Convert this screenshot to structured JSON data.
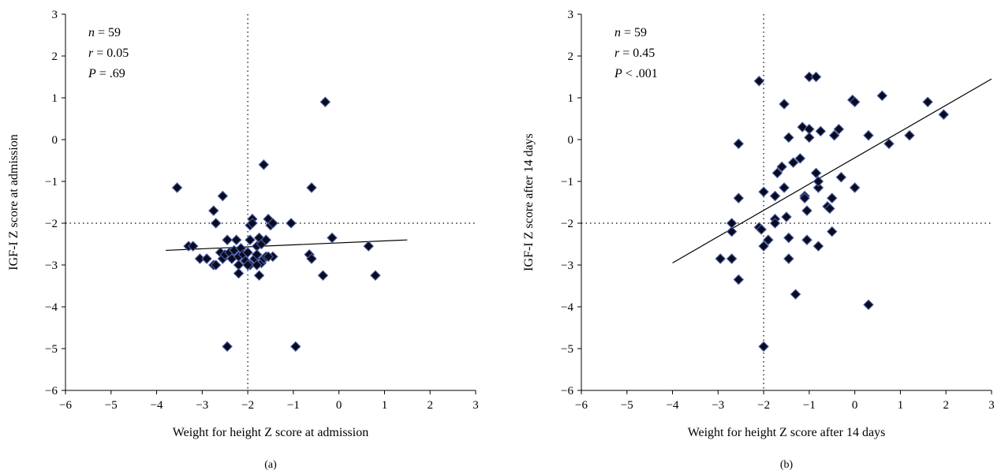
{
  "chart_data": [
    {
      "type": "scatter",
      "panel_label": "(a)",
      "xlabel": "Weight for height Z score at admission",
      "ylabel": "IGF-I Z score at admission",
      "xlim": [
        -6,
        3
      ],
      "ylim": [
        -6,
        3
      ],
      "x_ticks": [
        -6,
        -5,
        -4,
        -3,
        -2,
        -1,
        0,
        1,
        2,
        3
      ],
      "y_ticks": [
        -6,
        -5,
        -4,
        -3,
        -2,
        -1,
        0,
        1,
        2,
        3
      ],
      "x_tick_labels": [
        "−6",
        "−5",
        "−4",
        "−3",
        "−2",
        "−1",
        "0",
        "1",
        "2",
        "3"
      ],
      "y_tick_labels": [
        "−6",
        "−5",
        "−4",
        "−3",
        "−2",
        "−1",
        "0",
        "1",
        "2",
        "3"
      ],
      "stats": [
        {
          "var": "n",
          "rest": " = 59"
        },
        {
          "var": "r",
          "rest": " = 0.05"
        },
        {
          "var": "P",
          "rest": " = .69"
        }
      ],
      "reference_lines": {
        "x": -2,
        "y": -2
      },
      "fit_line": {
        "x": [
          -3.8,
          1.5
        ],
        "y": [
          -2.65,
          -2.4
        ]
      },
      "points": [
        [
          -3.55,
          -1.15
        ],
        [
          -3.3,
          -2.55
        ],
        [
          -3.2,
          -2.55
        ],
        [
          -3.05,
          -2.85
        ],
        [
          -2.9,
          -2.85
        ],
        [
          -2.75,
          -1.7
        ],
        [
          -2.7,
          -2.0
        ],
        [
          -2.75,
          -3.0
        ],
        [
          -2.7,
          -3.0
        ],
        [
          -2.6,
          -2.7
        ],
        [
          -2.55,
          -1.35
        ],
        [
          -2.55,
          -2.85
        ],
        [
          -2.5,
          -2.75
        ],
        [
          -2.45,
          -2.4
        ],
        [
          -2.4,
          -2.7
        ],
        [
          -2.35,
          -2.85
        ],
        [
          -2.3,
          -2.65
        ],
        [
          -2.25,
          -2.4
        ],
        [
          -2.2,
          -2.8
        ],
        [
          -2.2,
          -3.0
        ],
        [
          -2.2,
          -3.2
        ],
        [
          -2.15,
          -2.6
        ],
        [
          -2.1,
          -2.75
        ],
        [
          -2.05,
          -2.9
        ],
        [
          -2.0,
          -2.7
        ],
        [
          -1.95,
          -2.4
        ],
        [
          -1.95,
          -2.05
        ],
        [
          -1.9,
          -1.9
        ],
        [
          -1.95,
          -3.0
        ],
        [
          -1.85,
          -2.85
        ],
        [
          -1.8,
          -2.55
        ],
        [
          -1.8,
          -2.75
        ],
        [
          -1.75,
          -2.35
        ],
        [
          -1.7,
          -2.5
        ],
        [
          -1.7,
          -2.95
        ],
        [
          -1.8,
          -3.0
        ],
        [
          -1.75,
          -3.25
        ],
        [
          -1.65,
          -2.85
        ],
        [
          -1.6,
          -2.4
        ],
        [
          -1.6,
          -2.8
        ],
        [
          -1.55,
          -1.9
        ],
        [
          -1.5,
          -2.05
        ],
        [
          -1.45,
          -2.0
        ],
        [
          -1.45,
          -2.8
        ],
        [
          -1.65,
          -0.6
        ],
        [
          -1.05,
          -2.0
        ],
        [
          -0.65,
          -2.75
        ],
        [
          -0.6,
          -2.85
        ],
        [
          -0.6,
          -1.15
        ],
        [
          -0.35,
          -3.25
        ],
        [
          -0.3,
          0.9
        ],
        [
          -0.15,
          -2.35
        ],
        [
          0.65,
          -2.55
        ],
        [
          0.8,
          -3.25
        ],
        [
          -2.45,
          -4.95
        ],
        [
          -0.95,
          -4.95
        ],
        [
          -1.55,
          -2.8
        ],
        [
          -2.0,
          -3.0
        ],
        [
          -1.9,
          -2.0
        ]
      ]
    },
    {
      "type": "scatter",
      "panel_label": "(b)",
      "xlabel": "Weight for height Z score after 14 days",
      "ylabel": "IGF-I Z score after 14 days",
      "xlim": [
        -6,
        3
      ],
      "ylim": [
        -6,
        3
      ],
      "x_ticks": [
        -6,
        -5,
        -4,
        -3,
        -2,
        -1,
        0,
        1,
        2,
        3
      ],
      "y_ticks": [
        -6,
        -5,
        -4,
        -3,
        -2,
        -1,
        0,
        1,
        2,
        3
      ],
      "x_tick_labels": [
        "−6",
        "−5",
        "−4",
        "−3",
        "−2",
        "−1",
        "0",
        "1",
        "2",
        "3"
      ],
      "y_tick_labels": [
        "−6",
        "−5",
        "−4",
        "−3",
        "−2",
        "−1",
        "0",
        "1",
        "2",
        "3"
      ],
      "stats": [
        {
          "var": "n",
          "rest": " = 59"
        },
        {
          "var": "r",
          "rest": " = 0.45"
        },
        {
          "var": "P",
          "rest": " < .001"
        }
      ],
      "reference_lines": {
        "x": -2,
        "y": -2
      },
      "fit_line": {
        "x": [
          -4,
          3
        ],
        "y": [
          -2.95,
          1.45
        ]
      },
      "points": [
        [
          -2.95,
          -2.85
        ],
        [
          -2.7,
          -2.85
        ],
        [
          -2.7,
          -2.2
        ],
        [
          -2.7,
          -2.0
        ],
        [
          -2.55,
          -0.1
        ],
        [
          -2.55,
          -1.4
        ],
        [
          -2.55,
          -3.35
        ],
        [
          -2.1,
          1.4
        ],
        [
          -2.1,
          -2.1
        ],
        [
          -2.05,
          -2.15
        ],
        [
          -2.0,
          -1.25
        ],
        [
          -2.0,
          -2.55
        ],
        [
          -2.0,
          -4.95
        ],
        [
          -1.9,
          -2.4
        ],
        [
          -1.75,
          -1.9
        ],
        [
          -1.75,
          -2.0
        ],
        [
          -1.75,
          -1.35
        ],
        [
          -1.7,
          -0.8
        ],
        [
          -1.6,
          -0.65
        ],
        [
          -1.55,
          -1.15
        ],
        [
          -1.55,
          0.85
        ],
        [
          -1.5,
          -1.85
        ],
        [
          -1.45,
          -2.35
        ],
        [
          -1.45,
          -2.85
        ],
        [
          -1.45,
          0.05
        ],
        [
          -1.35,
          -0.55
        ],
        [
          -1.3,
          -3.7
        ],
        [
          -1.2,
          -0.45
        ],
        [
          -1.15,
          0.3
        ],
        [
          -1.1,
          -1.35
        ],
        [
          -1.1,
          -1.4
        ],
        [
          -1.05,
          -2.4
        ],
        [
          -1.05,
          -1.7
        ],
        [
          -1.0,
          1.5
        ],
        [
          -1.0,
          0.25
        ],
        [
          -1.0,
          0.05
        ],
        [
          -0.85,
          1.5
        ],
        [
          -0.85,
          -0.8
        ],
        [
          -0.8,
          -1.15
        ],
        [
          -0.8,
          -1.0
        ],
        [
          -0.8,
          -2.55
        ],
        [
          -0.75,
          0.2
        ],
        [
          -0.6,
          -1.6
        ],
        [
          -0.55,
          -1.65
        ],
        [
          -0.5,
          -2.2
        ],
        [
          -0.5,
          -1.4
        ],
        [
          -0.45,
          0.1
        ],
        [
          -0.35,
          0.25
        ],
        [
          -0.3,
          -0.9
        ],
        [
          -0.05,
          0.95
        ],
        [
          0.0,
          0.9
        ],
        [
          0.0,
          -1.15
        ],
        [
          0.3,
          -3.95
        ],
        [
          0.3,
          0.1
        ],
        [
          0.6,
          1.05
        ],
        [
          0.75,
          -0.1
        ],
        [
          1.2,
          0.1
        ],
        [
          1.6,
          0.9
        ],
        [
          1.95,
          0.6
        ]
      ]
    }
  ]
}
